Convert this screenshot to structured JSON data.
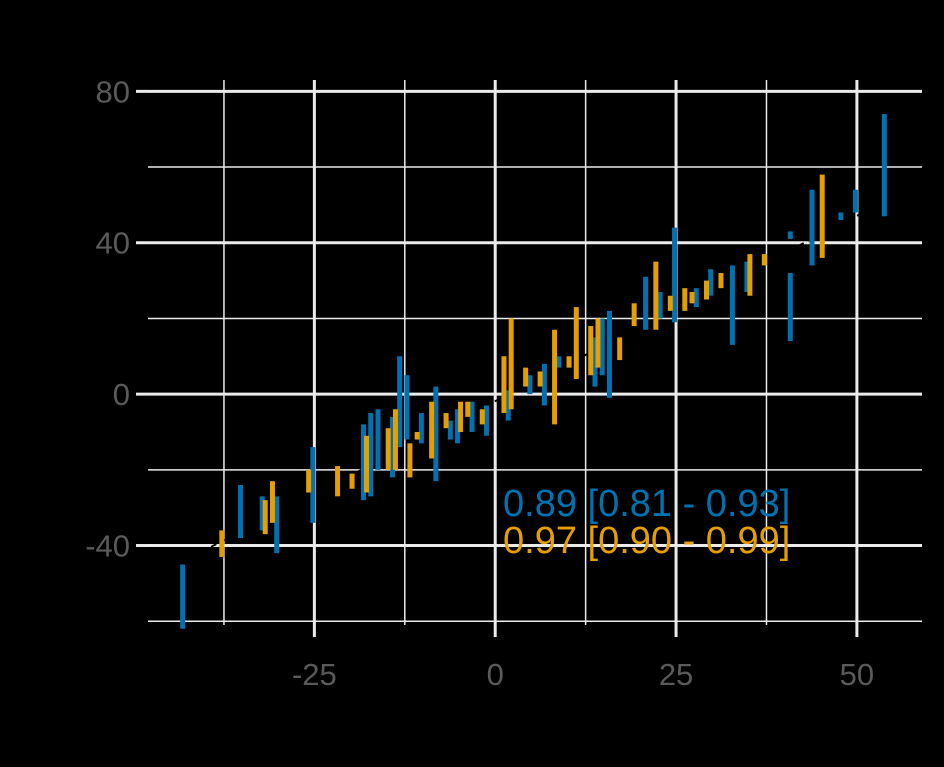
{
  "chart_data": {
    "type": "scatter",
    "title": "",
    "xlabel": "",
    "ylabel": "",
    "xlim": [
      -48,
      59
    ],
    "ylim": [
      -61,
      83
    ],
    "x_ticks": [
      -25,
      0,
      25,
      50
    ],
    "x_tick_labels": [
      "-25",
      "0",
      "25",
      "50"
    ],
    "y_ticks": [
      80,
      40,
      0,
      -40
    ],
    "y_tick_labels": [
      "80",
      "40",
      "0",
      "-40"
    ],
    "grid": true,
    "background": "#000000",
    "grid_color": "#ebebeb",
    "identity_line": {
      "from": [
        -42,
        -43
      ],
      "to": [
        55,
        52
      ],
      "style": "dashed",
      "color": "#000000"
    },
    "annotations": [
      {
        "text": "0.89 [0.81 - 0.93]",
        "x": 1,
        "y": -30,
        "color": "#0072b2"
      },
      {
        "text": "0.97 [0.90 - 0.99]",
        "x": 1,
        "y": -41,
        "color": "#e69f00"
      }
    ],
    "series": [
      {
        "color": "#0072b2",
        "points": [
          [
            -43,
            -62,
            -45
          ],
          [
            -35,
            -38,
            -24
          ],
          [
            -32,
            -36,
            -27
          ],
          [
            -30,
            -42,
            -27
          ],
          [
            -25,
            -34,
            -14
          ],
          [
            -18,
            -28,
            -8
          ],
          [
            -17,
            -27,
            -5
          ],
          [
            -16,
            -20,
            -4
          ],
          [
            -14,
            -22,
            -6
          ],
          [
            -13,
            -14,
            10
          ],
          [
            -12,
            -12,
            5
          ],
          [
            -10,
            -13,
            -5
          ],
          [
            -8,
            -23,
            2
          ],
          [
            -6,
            -12,
            -7
          ],
          [
            -5,
            -13,
            -4
          ],
          [
            -3,
            -10,
            -2
          ],
          [
            -1,
            -11,
            -3
          ],
          [
            2,
            -7,
            1
          ],
          [
            5,
            0,
            5
          ],
          [
            7,
            -3,
            8
          ],
          [
            9,
            7,
            10
          ],
          [
            14,
            2,
            15
          ],
          [
            15,
            5,
            20
          ],
          [
            16,
            -1,
            22
          ],
          [
            21,
            17,
            31
          ],
          [
            23,
            20,
            27
          ],
          [
            25,
            19,
            44
          ],
          [
            28,
            23,
            28
          ],
          [
            30,
            26,
            33
          ],
          [
            33,
            13,
            34
          ],
          [
            35,
            27,
            35
          ],
          [
            41,
            14,
            32
          ],
          [
            41,
            41,
            43
          ],
          [
            44,
            34,
            54
          ],
          [
            48,
            46,
            48
          ],
          [
            50,
            48,
            54
          ],
          [
            54,
            47,
            74
          ]
        ]
      },
      {
        "color": "#e69f00",
        "points": [
          [
            -38,
            -43,
            -36
          ],
          [
            -32,
            -37,
            -28
          ],
          [
            -31,
            -34,
            -23
          ],
          [
            -26,
            -26,
            -20
          ],
          [
            -22,
            -27,
            -19
          ],
          [
            -20,
            -25,
            -21
          ],
          [
            -18,
            -26,
            -11
          ],
          [
            -15,
            -20,
            -9
          ],
          [
            -14,
            -20,
            -4
          ],
          [
            -12,
            -22,
            -13
          ],
          [
            -11,
            -12,
            -10
          ],
          [
            -9,
            -17,
            -2
          ],
          [
            -7,
            -9,
            -5
          ],
          [
            -5,
            -10,
            -2
          ],
          [
            -4,
            -6,
            -2
          ],
          [
            -2,
            -8,
            -4
          ],
          [
            1,
            -5,
            10
          ],
          [
            2,
            -4,
            20
          ],
          [
            4,
            2,
            7
          ],
          [
            6,
            2,
            6
          ],
          [
            8,
            -8,
            17
          ],
          [
            10,
            7,
            10
          ],
          [
            11,
            4,
            23
          ],
          [
            13,
            5,
            18
          ],
          [
            14,
            7,
            20
          ],
          [
            17,
            9,
            15
          ],
          [
            19,
            18,
            24
          ],
          [
            22,
            17,
            35
          ],
          [
            24,
            22,
            26
          ],
          [
            26,
            22,
            28
          ],
          [
            27,
            24,
            27
          ],
          [
            29,
            25,
            30
          ],
          [
            31,
            28,
            32
          ],
          [
            35,
            26,
            37
          ],
          [
            37,
            34,
            37
          ],
          [
            45,
            36,
            58
          ]
        ]
      }
    ]
  }
}
